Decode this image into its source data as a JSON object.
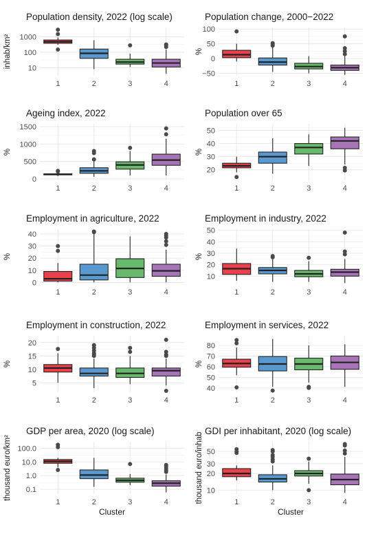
{
  "figure": {
    "colors": [
      "#e8414b",
      "#5a99cf",
      "#69b96c",
      "#a874b8"
    ],
    "x_label": "Cluster"
  },
  "chart_data": [
    {
      "type": "box",
      "title": "Population density, 2022 (log scale)",
      "ylabel": "inhab/km²",
      "xlabel": "",
      "scale": "log",
      "ylim": [
        3,
        4000
      ],
      "yticks": [
        10,
        100,
        1000
      ],
      "ytick_labels": [
        "10",
        "100",
        "1000"
      ],
      "categories": [
        "1",
        "2",
        "3",
        "4"
      ],
      "boxes": [
        {
          "whislo": 300,
          "q1": 380,
          "med": 480,
          "q3": 620,
          "whishi": 900,
          "fliers": [
            150,
            1500,
            2900
          ]
        },
        {
          "whislo": 8,
          "q1": 40,
          "med": 85,
          "q3": 160,
          "whishi": 600,
          "fliers": []
        },
        {
          "whislo": 11,
          "q1": 17,
          "med": 23,
          "q3": 35,
          "whishi": 80,
          "fliers": [
            280
          ]
        },
        {
          "whislo": 4,
          "q1": 11,
          "med": 20,
          "q3": 35,
          "whishi": 150,
          "fliers": [
            220,
            280,
            320
          ]
        }
      ]
    },
    {
      "type": "box",
      "title": "Population change, 2000−2022",
      "ylabel": "%",
      "xlabel": "",
      "scale": "linear",
      "ylim": [
        -58,
        105
      ],
      "yticks": [
        -50,
        0,
        50,
        100
      ],
      "ytick_labels": [
        "−50",
        "0",
        "50",
        "100"
      ],
      "categories": [
        "1",
        "2",
        "3",
        "4"
      ],
      "boxes": [
        {
          "whislo": -10,
          "q1": 3,
          "med": 13,
          "q3": 28,
          "whishi": 50,
          "fliers": [
            92
          ]
        },
        {
          "whislo": -45,
          "q1": -22,
          "med": -12,
          "q3": 2,
          "whishi": 38,
          "fliers": [
            44,
            48,
            52
          ]
        },
        {
          "whislo": -50,
          "q1": -35,
          "med": -27,
          "q3": -16,
          "whishi": 8,
          "fliers": []
        },
        {
          "whislo": -55,
          "q1": -40,
          "med": -31,
          "q3": -22,
          "whishi": 8,
          "fliers": [
            15,
            25,
            35,
            75
          ]
        }
      ]
    },
    {
      "type": "box",
      "title": "Ageing index, 2022",
      "ylabel": "%",
      "xlabel": "",
      "scale": "linear",
      "ylim": [
        -40,
        1580
      ],
      "yticks": [
        0,
        500,
        1000,
        1500
      ],
      "ytick_labels": [
        "0",
        "500",
        "1000",
        "1500"
      ],
      "categories": [
        "1",
        "2",
        "3",
        "4"
      ],
      "boxes": [
        {
          "whislo": 80,
          "q1": 115,
          "med": 130,
          "q3": 145,
          "whishi": 175,
          "fliers": [
            210,
            230
          ]
        },
        {
          "whislo": 60,
          "q1": 160,
          "med": 230,
          "q3": 320,
          "whishi": 520,
          "fliers": [
            560,
            740,
            800
          ]
        },
        {
          "whislo": 100,
          "q1": 280,
          "med": 400,
          "q3": 490,
          "whishi": 800,
          "fliers": [
            890
          ]
        },
        {
          "whislo": 100,
          "q1": 390,
          "med": 540,
          "q3": 710,
          "whishi": 1150,
          "fliers": [
            1280,
            1450
          ]
        }
      ]
    },
    {
      "type": "box",
      "title": "Population over 65",
      "ylabel": "%",
      "xlabel": "",
      "scale": "linear",
      "ylim": [
        12,
        55
      ],
      "yticks": [
        20,
        30,
        40,
        50
      ],
      "ytick_labels": [
        "20",
        "30",
        "40",
        "50"
      ],
      "categories": [
        "1",
        "2",
        "3",
        "4"
      ],
      "boxes": [
        {
          "whislo": 18,
          "q1": 21.5,
          "med": 23,
          "q3": 25,
          "whishi": 30,
          "fliers": [
            14.5
          ]
        },
        {
          "whislo": 17,
          "q1": 25,
          "med": 30,
          "q3": 33.5,
          "whishi": 44,
          "fliers": []
        },
        {
          "whislo": 23,
          "q1": 32,
          "med": 37,
          "q3": 40,
          "whishi": 47,
          "fliers": []
        },
        {
          "whislo": 24,
          "q1": 36,
          "med": 42,
          "q3": 45,
          "whishi": 52,
          "fliers": [
            19.5,
            21.5
          ]
        }
      ]
    },
    {
      "type": "box",
      "title": "Employment in agriculture, 2022",
      "ylabel": "%",
      "xlabel": "",
      "scale": "linear",
      "ylim": [
        -1.5,
        44
      ],
      "yticks": [
        0,
        10,
        20,
        30,
        40
      ],
      "ytick_labels": [
        "0",
        "10",
        "20",
        "30",
        "40"
      ],
      "categories": [
        "1",
        "2",
        "3",
        "4"
      ],
      "boxes": [
        {
          "whislo": 0,
          "q1": 1,
          "med": 3,
          "q3": 9,
          "whishi": 16,
          "fliers": [
            26,
            30
          ]
        },
        {
          "whislo": 0,
          "q1": 2,
          "med": 6,
          "q3": 15,
          "whishi": 40,
          "fliers": [
            41.5,
            42
          ]
        },
        {
          "whislo": 0,
          "q1": 4,
          "med": 11.5,
          "q3": 19.5,
          "whishi": 38,
          "fliers": []
        },
        {
          "whislo": 0,
          "q1": 5,
          "med": 9.5,
          "q3": 15,
          "whishi": 27,
          "fliers": [
            31,
            34,
            37,
            38.5,
            40
          ]
        }
      ]
    },
    {
      "type": "box",
      "title": "Employment in industry, 2022",
      "ylabel": "%",
      "xlabel": "",
      "scale": "linear",
      "ylim": [
        3,
        51
      ],
      "yticks": [
        10,
        20,
        30,
        40,
        50
      ],
      "ytick_labels": [
        "10",
        "20",
        "30",
        "40",
        "50"
      ],
      "categories": [
        "1",
        "2",
        "3",
        "4"
      ],
      "boxes": [
        {
          "whislo": 6,
          "q1": 11.5,
          "med": 16.5,
          "q3": 21,
          "whishi": 34,
          "fliers": []
        },
        {
          "whislo": 5,
          "q1": 12,
          "med": 15,
          "q3": 17.5,
          "whishi": 25,
          "fliers": [
            26.5,
            27.5
          ]
        },
        {
          "whislo": 5,
          "q1": 9.5,
          "med": 12,
          "q3": 15,
          "whishi": 23,
          "fliers": [
            26
          ]
        },
        {
          "whislo": 4,
          "q1": 10,
          "med": 13.5,
          "q3": 16,
          "whishi": 25,
          "fliers": [
            29,
            31.5,
            48
          ]
        }
      ]
    },
    {
      "type": "box",
      "title": "Employment in construction, 2022",
      "ylabel": "%",
      "xlabel": "",
      "scale": "linear",
      "ylim": [
        1.5,
        22.5
      ],
      "yticks": [
        5,
        10,
        15,
        20
      ],
      "ytick_labels": [
        "5",
        "10",
        "15",
        "20"
      ],
      "categories": [
        "1",
        "2",
        "3",
        "4"
      ],
      "boxes": [
        {
          "whislo": 5,
          "q1": 9,
          "med": 10.5,
          "q3": 11.8,
          "whishi": 16,
          "fliers": [
            17.6
          ]
        },
        {
          "whislo": 3,
          "q1": 7.5,
          "med": 8.5,
          "q3": 10.5,
          "whishi": 14,
          "fliers": [
            15,
            15.5,
            16,
            17,
            18,
            19
          ]
        },
        {
          "whislo": 4.5,
          "q1": 7,
          "med": 8.5,
          "q3": 10.5,
          "whishi": 15,
          "fliers": [
            16.5,
            18
          ]
        },
        {
          "whislo": 4,
          "q1": 7.5,
          "med": 9.5,
          "q3": 10.5,
          "whishi": 14,
          "fliers": [
            2,
            15,
            15.5,
            16.5,
            21
          ]
        }
      ]
    },
    {
      "type": "box",
      "title": "Employment in services, 2022",
      "ylabel": "%",
      "xlabel": "",
      "scale": "linear",
      "ylim": [
        36,
        89
      ],
      "yticks": [
        40,
        50,
        60,
        70,
        80
      ],
      "ytick_labels": [
        "40",
        "50",
        "60",
        "70",
        "80"
      ],
      "categories": [
        "1",
        "2",
        "3",
        "4"
      ],
      "boxes": [
        {
          "whislo": 52,
          "q1": 59.5,
          "med": 63,
          "q3": 67,
          "whishi": 78,
          "fliers": [
            40.5,
            82,
            85
          ]
        },
        {
          "whislo": 41,
          "q1": 56,
          "med": 62.5,
          "q3": 69.5,
          "whishi": 86,
          "fliers": [
            37.5
          ]
        },
        {
          "whislo": 45,
          "q1": 57,
          "med": 62.5,
          "q3": 68,
          "whishi": 80,
          "fliers": [
            40,
            41
          ]
        },
        {
          "whislo": 41,
          "q1": 57.5,
          "med": 64,
          "q3": 70,
          "whishi": 81,
          "fliers": []
        }
      ]
    },
    {
      "type": "box",
      "title": "GDP per area, 2020 (log scale)",
      "ylabel": "thousand euro/km²",
      "xlabel": "Cluster",
      "scale": "log",
      "ylim": [
        0.045,
        300
      ],
      "yticks": [
        0.1,
        1,
        10,
        100
      ],
      "ytick_labels": [
        "0.1",
        "1.0",
        "10.0",
        "100.0"
      ],
      "categories": [
        "1",
        "2",
        "3",
        "4"
      ],
      "boxes": [
        {
          "whislo": 4,
          "q1": 8,
          "med": 11,
          "q3": 15,
          "whishi": 20,
          "fliers": [
            2.6,
            120,
            180
          ]
        },
        {
          "whislo": 0.15,
          "q1": 0.6,
          "med": 1.1,
          "q3": 2.6,
          "whishi": 20,
          "fliers": []
        },
        {
          "whislo": 0.2,
          "q1": 0.33,
          "med": 0.45,
          "q3": 0.65,
          "whishi": 1.3,
          "fliers": [
            7
          ]
        },
        {
          "whislo": 0.06,
          "q1": 0.17,
          "med": 0.28,
          "q3": 0.42,
          "whishi": 1.2,
          "fliers": [
            1.9,
            2.5,
            3.5,
            5,
            6
          ]
        }
      ]
    },
    {
      "type": "box",
      "title": "GDI per inhabitant, 2020 (log scale)",
      "ylabel": "thousand euro/inhab",
      "xlabel": "Cluster",
      "scale": "log",
      "ylim": [
        8.5,
        75
      ],
      "yticks": [
        10,
        20,
        30,
        50
      ],
      "ytick_labels": [
        "10",
        "20",
        "30",
        "50"
      ],
      "categories": [
        "1",
        "2",
        "3",
        "4"
      ],
      "boxes": [
        {
          "whislo": 15,
          "q1": 17.5,
          "med": 20,
          "q3": 24.5,
          "whishi": 28,
          "fliers": [
            47,
            50,
            55
          ]
        },
        {
          "whislo": 10,
          "q1": 14,
          "med": 16,
          "q3": 19,
          "whishi": 28,
          "fliers": [
            33,
            36,
            40,
            43,
            50,
            53
          ]
        },
        {
          "whislo": 13,
          "q1": 18,
          "med": 20,
          "q3": 22.5,
          "whishi": 33,
          "fliers": [
            10,
            37
          ]
        },
        {
          "whislo": 9,
          "q1": 12.5,
          "med": 15.5,
          "q3": 19.5,
          "whishi": 40,
          "fliers": [
            46,
            52,
            64,
            68
          ]
        }
      ]
    }
  ]
}
